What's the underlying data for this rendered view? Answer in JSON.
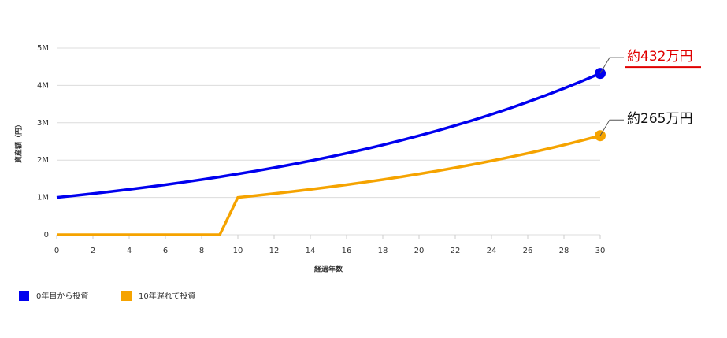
{
  "chart_data": {
    "type": "line",
    "y_label": "資産額（円）",
    "x_label": "経過年数",
    "x": [
      0,
      1,
      2,
      3,
      4,
      5,
      6,
      7,
      8,
      9,
      10,
      11,
      12,
      13,
      14,
      15,
      16,
      17,
      18,
      19,
      20,
      21,
      22,
      23,
      24,
      25,
      26,
      27,
      28,
      29,
      30
    ],
    "series": [
      {
        "name": "0年目から投資",
        "color": "#0000ee",
        "values": [
          1000000,
          1050000,
          1102500,
          1157625,
          1215506,
          1276282,
          1340096,
          1407100,
          1477455,
          1551328,
          1628895,
          1710339,
          1795856,
          1885649,
          1979932,
          2078928,
          2182875,
          2292018,
          2406619,
          2526950,
          2653298,
          2785963,
          2925261,
          3071524,
          3225100,
          3386355,
          3555673,
          3733456,
          3920129,
          4116136,
          4321942
        ]
      },
      {
        "name": "10年遅れて投資",
        "color": "#f5a300",
        "values": [
          0,
          0,
          0,
          0,
          0,
          0,
          0,
          0,
          0,
          0,
          1000000,
          1050000,
          1102500,
          1157625,
          1215506,
          1276282,
          1340096,
          1407100,
          1477455,
          1551328,
          1628895,
          1710339,
          1795856,
          1885649,
          1979932,
          2078928,
          2182875,
          2292018,
          2406619,
          2526950,
          2653298
        ]
      }
    ],
    "annotations": [
      {
        "text": "約432万円",
        "color": "#e00000"
      },
      {
        "text": "約265万円",
        "color": "#111111"
      }
    ],
    "xlim": [
      0,
      30
    ],
    "xticks": [
      0,
      2,
      4,
      6,
      8,
      10,
      12,
      14,
      16,
      18,
      20,
      22,
      24,
      26,
      28,
      30
    ],
    "ylim": [
      0,
      5000000
    ],
    "yticks": [
      0,
      {
        "value": 1000000,
        "label": "1M"
      },
      {
        "value": 2000000,
        "label": "2M"
      },
      {
        "value": 3000000,
        "label": "3M"
      },
      {
        "value": 4000000,
        "label": "4M"
      },
      {
        "value": 5000000,
        "label": "5M"
      }
    ],
    "grid": true
  }
}
